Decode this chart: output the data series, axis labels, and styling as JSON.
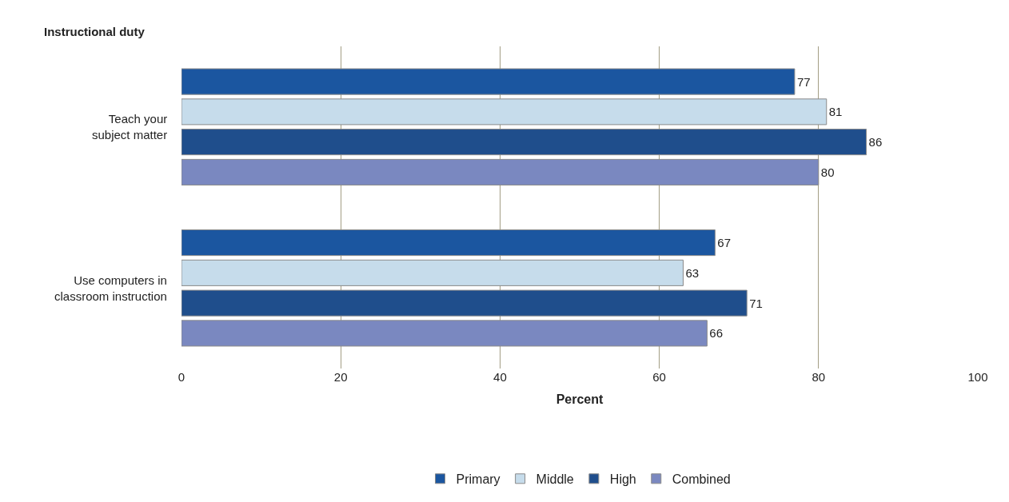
{
  "chart_data": {
    "type": "bar",
    "orientation": "horizontal",
    "ylabel": "Instructional duty",
    "xlabel": "Percent",
    "categories": [
      "Teach your subject matter",
      "Use computers in classroom instruction"
    ],
    "series": [
      {
        "name": "Primary",
        "color": "#1b56a0",
        "values": [
          77,
          67
        ]
      },
      {
        "name": "Middle",
        "color": "#c6dceb",
        "values": [
          81,
          63
        ]
      },
      {
        "name": "High",
        "color": "#1f4e8c",
        "values": [
          86,
          71
        ]
      },
      {
        "name": "Combined",
        "color": "#7a88c0",
        "values": [
          80,
          66
        ]
      }
    ],
    "xlim": [
      0,
      100
    ],
    "xticks": [
      0,
      20,
      40,
      60,
      80,
      100
    ],
    "grid": "x",
    "legend": "bottom",
    "data_labels": true
  }
}
